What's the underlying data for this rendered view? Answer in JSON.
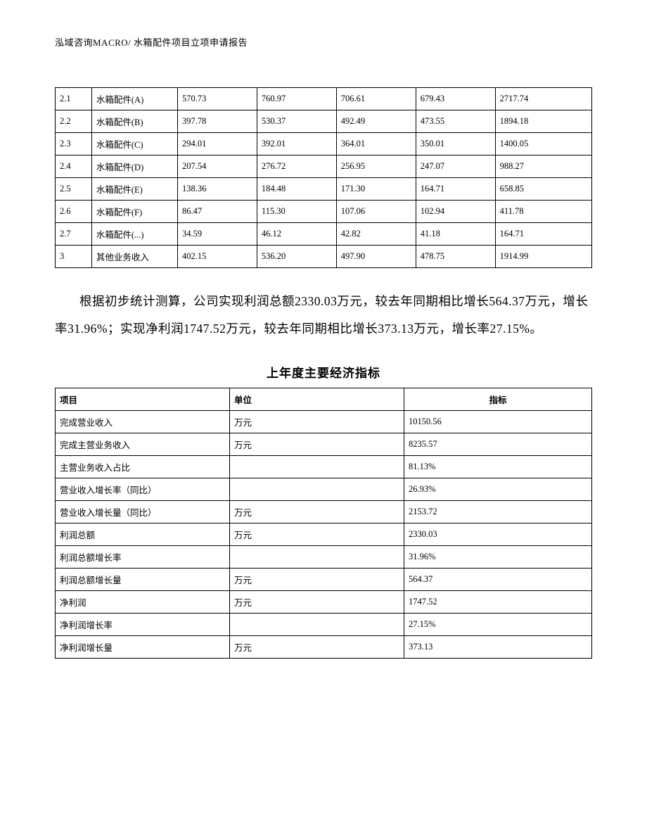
{
  "header": "泓域咨询MACRO/    水箱配件项目立项申请报告",
  "table1": {
    "rows": [
      [
        "2.1",
        "水箱配件(A)",
        "570.73",
        "760.97",
        "706.61",
        "679.43",
        "2717.74"
      ],
      [
        "2.2",
        "水箱配件(B)",
        "397.78",
        "530.37",
        "492.49",
        "473.55",
        "1894.18"
      ],
      [
        "2.3",
        "水箱配件(C)",
        "294.01",
        "392.01",
        "364.01",
        "350.01",
        "1400.05"
      ],
      [
        "2.4",
        "水箱配件(D)",
        "207.54",
        "276.72",
        "256.95",
        "247.07",
        "988.27"
      ],
      [
        "2.5",
        "水箱配件(E)",
        "138.36",
        "184.48",
        "171.30",
        "164.71",
        "658.85"
      ],
      [
        "2.6",
        "水箱配件(F)",
        "86.47",
        "115.30",
        "107.06",
        "102.94",
        "411.78"
      ],
      [
        "2.7",
        "水箱配件(...)",
        "34.59",
        "46.12",
        "42.82",
        "41.18",
        "164.71"
      ],
      [
        "3",
        "其他业务收入",
        "402.15",
        "536.20",
        "497.90",
        "478.75",
        "1914.99"
      ]
    ]
  },
  "paragraph": "根据初步统计测算，公司实现利润总额2330.03万元，较去年同期相比增长564.37万元，增长率31.96%；实现净利润1747.52万元，较去年同期相比增长373.13万元，增长率27.15%。",
  "table2": {
    "title": "上年度主要经济指标",
    "headers": [
      "项目",
      "单位",
      "指标"
    ],
    "rows": [
      [
        "完成营业收入",
        "万元",
        "10150.56"
      ],
      [
        "完成主营业务收入",
        "万元",
        "8235.57"
      ],
      [
        "主营业务收入占比",
        "",
        "81.13%"
      ],
      [
        "营业收入增长率（同比）",
        "",
        "26.93%"
      ],
      [
        "营业收入增长量（同比）",
        "万元",
        "2153.72"
      ],
      [
        "利润总额",
        "万元",
        "2330.03"
      ],
      [
        "利润总额增长率",
        "",
        "31.96%"
      ],
      [
        "利润总额增长量",
        "万元",
        "564.37"
      ],
      [
        "净利润",
        "万元",
        "1747.52"
      ],
      [
        "净利润增长率",
        "",
        "27.15%"
      ],
      [
        "净利润增长量",
        "万元",
        "373.13"
      ]
    ]
  }
}
